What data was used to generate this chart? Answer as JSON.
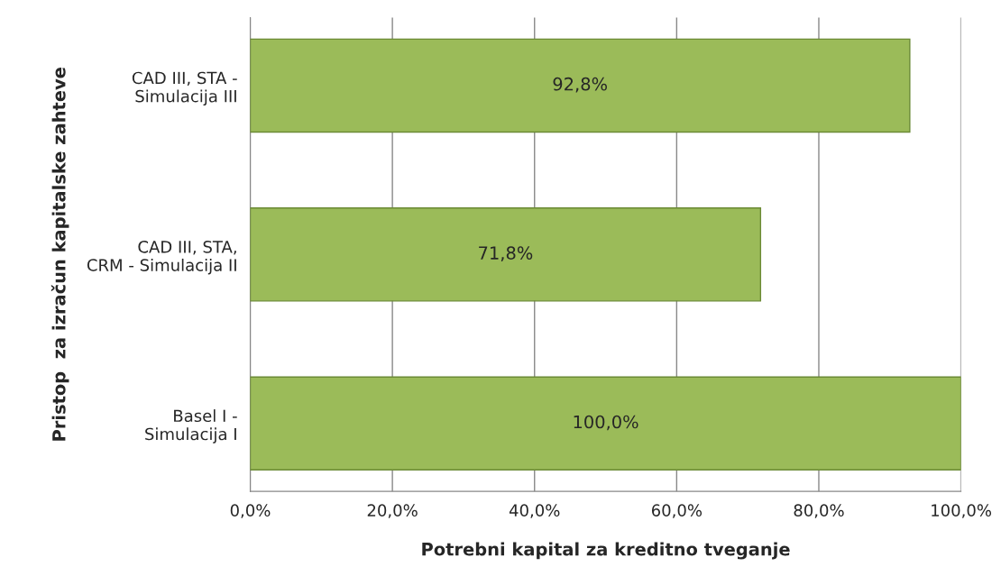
{
  "chart_data": {
    "type": "bar",
    "orientation": "horizontal",
    "xlabel": "Potrebni kapital za kreditno tveganje",
    "ylabel": "Pristop  za izračun kapitalske zahteve",
    "categories": [
      "CAD III, STA -\nSimulacija III",
      "CAD III, STA,\nCRM - Simulacija II",
      "Basel I -\nSimulacija I"
    ],
    "values": [
      92.8,
      71.8,
      100.0
    ],
    "value_labels": [
      "92,8%",
      "71,8%",
      "100,0%"
    ],
    "color": "#9bbb59",
    "xlim": [
      0,
      100
    ],
    "xticks": [
      {
        "value": 0,
        "label": "0,0%"
      },
      {
        "value": 20,
        "label": "20,0%"
      },
      {
        "value": 40,
        "label": "40,0%"
      },
      {
        "value": 60,
        "label": "60,0%"
      },
      {
        "value": 80,
        "label": "80,0%"
      },
      {
        "value": 100,
        "label": "100,0%"
      }
    ],
    "grid": "x"
  }
}
